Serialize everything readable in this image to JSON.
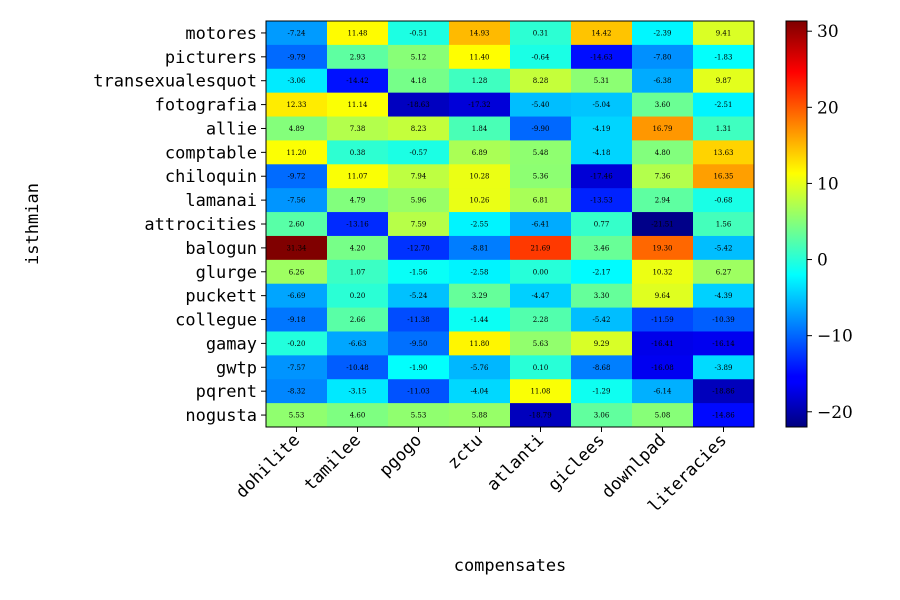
{
  "chart_data": {
    "type": "heatmap",
    "title": "",
    "xlabel": "compensates",
    "ylabel": "isthmian",
    "x_categories": [
      "dohilite",
      "tamilee",
      "pgogo",
      "zctu",
      "atlanti",
      "giclees",
      "downlpad",
      "literacies"
    ],
    "y_categories": [
      "motores",
      "picturers",
      "transexualesquot",
      "fotografia",
      "allie",
      "comptable",
      "chiloquin",
      "lamanai",
      "attrocities",
      "balogun",
      "glurge",
      "puckett",
      "collegue",
      "gamay",
      "gwtp",
      "pqrent",
      "nogusta"
    ],
    "values": [
      [
        -7.24,
        11.48,
        -0.51,
        14.93,
        0.31,
        14.42,
        -2.39,
        9.41
      ],
      [
        -9.79,
        2.93,
        5.12,
        11.4,
        -0.64,
        -14.63,
        -7.8,
        -1.83
      ],
      [
        -3.06,
        -14.42,
        4.18,
        1.28,
        8.28,
        5.31,
        -6.38,
        9.87
      ],
      [
        12.33,
        11.14,
        -18.63,
        -17.32,
        -5.4,
        -5.04,
        3.6,
        -2.51
      ],
      [
        4.89,
        7.38,
        8.23,
        1.84,
        -9.9,
        -4.19,
        16.79,
        1.31
      ],
      [
        11.2,
        0.38,
        -0.57,
        6.89,
        5.48,
        -4.18,
        4.8,
        13.63
      ],
      [
        -9.72,
        11.07,
        7.94,
        10.28,
        5.36,
        -17.46,
        7.36,
        16.35
      ],
      [
        -7.56,
        4.79,
        5.96,
        10.26,
        6.81,
        -13.53,
        2.94,
        -0.68
      ],
      [
        2.6,
        -13.16,
        7.59,
        -2.55,
        -6.41,
        0.77,
        -21.51,
        1.56
      ],
      [
        31.34,
        4.2,
        -12.7,
        -8.81,
        21.69,
        3.46,
        19.3,
        -5.42
      ],
      [
        6.26,
        1.07,
        -1.56,
        -2.58,
        0.0,
        -2.17,
        10.32,
        6.27
      ],
      [
        -6.69,
        0.2,
        -5.24,
        3.29,
        -4.47,
        3.3,
        9.64,
        -4.39
      ],
      [
        -9.18,
        2.66,
        -11.38,
        -1.44,
        2.28,
        -5.42,
        -11.59,
        -10.39
      ],
      [
        -0.2,
        -6.63,
        -9.5,
        11.8,
        5.63,
        9.29,
        -16.41,
        -16.14
      ],
      [
        -7.57,
        -10.48,
        -1.9,
        -5.76,
        0.1,
        -8.68,
        -16.08,
        -3.89
      ],
      [
        -8.32,
        -3.15,
        -11.03,
        -4.04,
        11.08,
        -1.29,
        -6.14,
        -18.86
      ],
      [
        5.53,
        4.6,
        5.53,
        5.88,
        -18.79,
        3.06,
        5.08,
        -14.86
      ]
    ],
    "color_range": [
      -22,
      31.34
    ],
    "colormap": "jet",
    "colorbar_ticks": [
      -20,
      -10,
      0,
      10,
      20,
      30
    ],
    "colorbar_tick_labels": [
      "−20",
      "−10",
      "0",
      "10",
      "20",
      "30"
    ],
    "grid": false,
    "legend": "colorbar-right"
  }
}
